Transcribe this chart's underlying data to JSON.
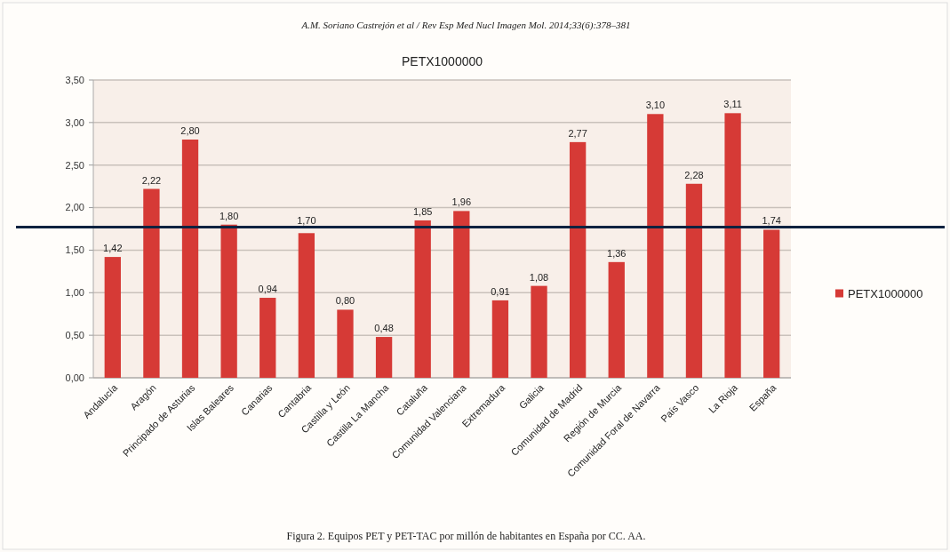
{
  "chart_data": {
    "type": "bar",
    "title": "PETX1000000",
    "annotations": [
      "A.M. Soriano Castrejón et al / Rev Esp Med Nucl Imagen Mol. 2014;33(6):378–381",
      "Figura 2. Equipos PET y PET-TAC por millón de habitantes en España por CC. AA."
    ],
    "categories": [
      "Andalucía",
      "Aragón",
      "Principado de Asturias",
      "Islas Baleares",
      "Canarias",
      "Cantabria",
      "Castilla y León",
      "Castilla La Mancha",
      "Cataluña",
      "Comunidad Valenciana",
      "Extremadura",
      "Galicia",
      "Comunidad de Madrid",
      "Región de Murcia",
      "Comunidad Foral de Navarra",
      "País Vasco",
      "La Rioja",
      "España"
    ],
    "series": [
      {
        "name": "PETX1000000",
        "color": "#d63a36",
        "values": [
          1.42,
          2.22,
          2.8,
          1.8,
          0.94,
          1.7,
          0.8,
          0.48,
          1.85,
          1.96,
          0.91,
          1.08,
          2.77,
          1.36,
          3.1,
          2.28,
          3.11,
          1.74
        ],
        "value_labels": [
          "1,42",
          "2,22",
          "2,80",
          "1,80",
          "0,94",
          "1,70",
          "0,80",
          "0,48",
          "1,85",
          "1,96",
          "0,91",
          "1,08",
          "2,77",
          "1,36",
          "3,10",
          "2,28",
          "3,11",
          "1,74"
        ]
      }
    ],
    "ylim": [
      0,
      3.5
    ],
    "yticks": [
      {
        "value": 0,
        "label": "0,00"
      },
      {
        "value": 0.5,
        "label": "0,50"
      },
      {
        "value": 1,
        "label": "1,00"
      },
      {
        "value": 1.5,
        "label": "1,50"
      },
      {
        "value": 2,
        "label": "2,00"
      },
      {
        "value": 2.5,
        "label": "2,50"
      },
      {
        "value": 3,
        "label": "3,00"
      },
      {
        "value": 3.5,
        "label": "3,50"
      }
    ],
    "grid": "y",
    "legend": "right",
    "ref_lines": [
      {
        "axis": "y",
        "value": 1.77,
        "color": "#0d2240"
      }
    ]
  }
}
